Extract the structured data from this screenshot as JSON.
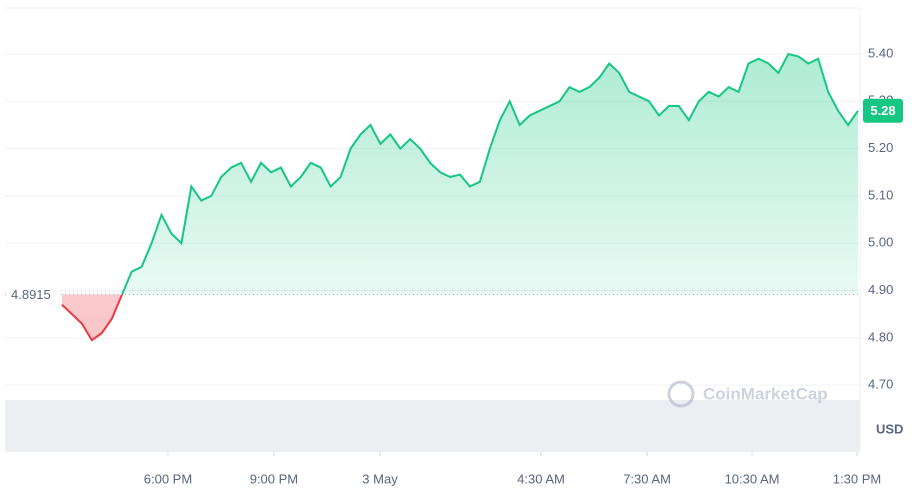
{
  "chart_data": {
    "type": "line",
    "unit": "USD",
    "watermark": "CoinMarketCap",
    "baseline": 4.8915,
    "last_price": 5.28,
    "ylim": [
      4.65,
      5.5
    ],
    "yticks": [
      {
        "value": 4.7,
        "label": "4.70"
      },
      {
        "value": 4.8,
        "label": "4.80"
      },
      {
        "value": 4.9,
        "label": "4.90"
      },
      {
        "value": 5.0,
        "label": "5.00"
      },
      {
        "value": 5.1,
        "label": "5.10"
      },
      {
        "value": 5.2,
        "label": "5.20"
      },
      {
        "value": 5.3,
        "label": "5.30"
      },
      {
        "value": 5.4,
        "label": "5.40"
      }
    ],
    "xlim": [
      0,
      80
    ],
    "xticks": [
      {
        "value": 10.65,
        "label": "6:00 PM"
      },
      {
        "value": 21.3,
        "label": "9:00 PM"
      },
      {
        "value": 31.96,
        "label": "3 May"
      },
      {
        "value": 48.14,
        "label": "4:30 AM"
      },
      {
        "value": 58.8,
        "label": "7:30 AM"
      },
      {
        "value": 69.35,
        "label": "10:30 AM"
      },
      {
        "value": 79.9,
        "label": "1:30 PM"
      }
    ],
    "grid": true,
    "up_color": "#16c784",
    "down_color": "#ea3943",
    "series": [
      {
        "values": [
          4.87,
          4.85,
          4.83,
          4.795,
          4.81,
          4.84,
          4.89,
          4.94,
          4.95,
          5.0,
          5.06,
          5.02,
          5.0,
          5.12,
          5.09,
          5.1,
          5.14,
          5.16,
          5.17,
          5.13,
          5.17,
          5.15,
          5.16,
          5.12,
          5.14,
          5.17,
          5.16,
          5.12,
          5.14,
          5.2,
          5.23,
          5.25,
          5.21,
          5.23,
          5.2,
          5.22,
          5.2,
          5.17,
          5.15,
          5.14,
          5.145,
          5.12,
          5.13,
          5.2,
          5.26,
          5.3,
          5.25,
          5.27,
          5.28,
          5.29,
          5.3,
          5.33,
          5.32,
          5.33,
          5.35,
          5.38,
          5.36,
          5.32,
          5.31,
          5.3,
          5.27,
          5.29,
          5.29,
          5.26,
          5.3,
          5.32,
          5.31,
          5.33,
          5.32,
          5.38,
          5.39,
          5.38,
          5.36,
          5.4,
          5.395,
          5.38,
          5.39,
          5.32,
          5.28,
          5.25,
          5.28
        ]
      }
    ]
  }
}
